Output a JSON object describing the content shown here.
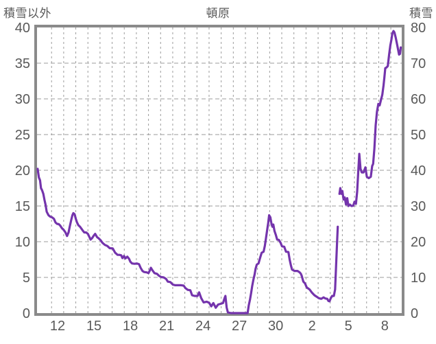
{
  "chart_data": {
    "type": "line",
    "title": "頓原",
    "station": "頓原",
    "left_axis": {
      "title": "積雪以外",
      "min": 0,
      "max": 40,
      "tick_step": 5,
      "ticks": [
        0,
        5,
        10,
        15,
        20,
        25,
        30,
        35,
        40
      ]
    },
    "right_axis": {
      "title": "積雪",
      "min": 0,
      "max": 80,
      "tick_step": 10,
      "ticks": [
        0,
        10,
        20,
        30,
        40,
        50,
        60,
        70,
        80
      ]
    },
    "x_axis": {
      "unit": "day-of-month",
      "domain": [
        10.3,
        40.4
      ],
      "tick_positions": [
        12,
        15,
        18,
        21,
        24,
        27,
        30,
        33,
        36,
        39
      ],
      "tick_labels": [
        "12",
        "15",
        "18",
        "21",
        "24",
        "27",
        "30",
        "2",
        "5",
        "8"
      ],
      "day_gridlines": {
        "start": 11.5,
        "end": 39.5,
        "step": 1
      }
    },
    "grid": {
      "style": "dashed",
      "color": "#9b9b9b",
      "on": true
    },
    "legend": "none",
    "colors": {
      "border": "#8a8a8a",
      "text": "#595959",
      "background": "#ffffff"
    },
    "series": [
      {
        "name": "積雪",
        "axis": "right",
        "unit": "cm",
        "color": "#7434ac",
        "line_width": 3.2,
        "segments": [
          [
            [
              10.35,
              40.4
            ],
            [
              10.45,
              38.0
            ],
            [
              10.55,
              37.2
            ],
            [
              10.63,
              35.0
            ],
            [
              10.72,
              34.4
            ],
            [
              10.82,
              33.4
            ],
            [
              10.92,
              31.6
            ],
            [
              11.0,
              30.4
            ],
            [
              11.1,
              28.4
            ],
            [
              11.25,
              27.4
            ],
            [
              11.4,
              27.0
            ],
            [
              11.55,
              26.8
            ],
            [
              11.7,
              26.4
            ],
            [
              11.82,
              25.4
            ],
            [
              11.95,
              25.0
            ],
            [
              12.1,
              24.9
            ],
            [
              12.22,
              24.5
            ],
            [
              12.35,
              23.8
            ],
            [
              12.5,
              23.3
            ],
            [
              12.65,
              22.6
            ],
            [
              12.78,
              21.6
            ],
            [
              12.9,
              22.6
            ],
            [
              13.0,
              24.2
            ],
            [
              13.12,
              26.0
            ],
            [
              13.22,
              27.4
            ],
            [
              13.3,
              28.0
            ],
            [
              13.4,
              27.7
            ],
            [
              13.5,
              26.4
            ],
            [
              13.6,
              25.4
            ],
            [
              13.72,
              24.6
            ],
            [
              13.85,
              24.2
            ],
            [
              13.98,
              23.6
            ],
            [
              14.1,
              23.0
            ],
            [
              14.2,
              22.6
            ],
            [
              14.35,
              22.6
            ],
            [
              14.5,
              22.2
            ],
            [
              14.62,
              21.3
            ],
            [
              14.72,
              20.6
            ],
            [
              14.85,
              21.0
            ],
            [
              15.0,
              21.8
            ],
            [
              15.1,
              22.2
            ],
            [
              15.25,
              21.3
            ],
            [
              15.4,
              20.9
            ],
            [
              15.55,
              20.4
            ],
            [
              15.7,
              19.7
            ],
            [
              15.9,
              19.1
            ],
            [
              16.1,
              18.8
            ],
            [
              16.3,
              18.2
            ],
            [
              16.55,
              18.1
            ],
            [
              16.75,
              16.9
            ],
            [
              16.95,
              16.3
            ],
            [
              17.1,
              16.3
            ],
            [
              17.25,
              16.2
            ],
            [
              17.35,
              15.4
            ],
            [
              17.48,
              16.0
            ],
            [
              17.6,
              15.3
            ],
            [
              17.75,
              15.8
            ],
            [
              17.9,
              15.2
            ],
            [
              18.0,
              14.4
            ],
            [
              18.15,
              13.9
            ],
            [
              18.35,
              13.8
            ],
            [
              18.55,
              13.9
            ],
            [
              18.72,
              13.7
            ],
            [
              18.85,
              12.7
            ],
            [
              19.0,
              11.8
            ],
            [
              19.15,
              11.5
            ],
            [
              19.35,
              11.4
            ],
            [
              19.5,
              11.2
            ],
            [
              19.62,
              12.0
            ],
            [
              19.7,
              12.7
            ],
            [
              19.82,
              12.0
            ],
            [
              20.0,
              11.2
            ],
            [
              20.2,
              11.0
            ],
            [
              20.38,
              10.4
            ],
            [
              20.55,
              10.1
            ],
            [
              20.75,
              10.0
            ],
            [
              20.95,
              9.6
            ],
            [
              21.1,
              8.8
            ],
            [
              21.3,
              8.7
            ],
            [
              21.5,
              8.0
            ],
            [
              21.7,
              7.8
            ],
            [
              21.95,
              7.8
            ],
            [
              22.2,
              7.8
            ],
            [
              22.4,
              7.7
            ],
            [
              22.55,
              7.0
            ],
            [
              22.75,
              6.5
            ],
            [
              22.95,
              6.4
            ],
            [
              23.1,
              5.0
            ],
            [
              23.3,
              4.8
            ],
            [
              23.55,
              4.8
            ],
            [
              23.68,
              5.8
            ],
            [
              23.85,
              4.2
            ],
            [
              24.05,
              3.0
            ],
            [
              24.3,
              3.2
            ],
            [
              24.5,
              2.9
            ],
            [
              24.68,
              1.9
            ],
            [
              24.85,
              2.8
            ],
            [
              25.05,
              1.5
            ],
            [
              25.25,
              2.4
            ],
            [
              25.45,
              2.6
            ],
            [
              25.65,
              2.8
            ],
            [
              25.78,
              4.2
            ],
            [
              25.85,
              4.8
            ],
            [
              25.95,
              1.6
            ],
            [
              26.05,
              0.2
            ],
            [
              26.3,
              0
            ],
            [
              26.7,
              0
            ],
            [
              27.1,
              0
            ],
            [
              27.68,
              0
            ],
            [
              27.78,
              2.2
            ],
            [
              27.88,
              3.8
            ],
            [
              27.97,
              5.6
            ],
            [
              28.06,
              7.6
            ],
            [
              28.16,
              9.4
            ],
            [
              28.26,
              10.8
            ],
            [
              28.34,
              12.4
            ],
            [
              28.44,
              13.6
            ],
            [
              28.58,
              13.9
            ],
            [
              28.72,
              15.6
            ],
            [
              28.84,
              16.9
            ],
            [
              29.0,
              17.2
            ],
            [
              29.1,
              18.8
            ],
            [
              29.18,
              20.6
            ],
            [
              29.28,
              23.0
            ],
            [
              29.38,
              25.2
            ],
            [
              29.46,
              27.4
            ],
            [
              29.56,
              26.8
            ],
            [
              29.66,
              24.8
            ],
            [
              29.73,
              24.2
            ],
            [
              29.8,
              24.8
            ],
            [
              29.9,
              23.0
            ],
            [
              30.0,
              22.0
            ],
            [
              30.12,
              20.6
            ],
            [
              30.26,
              20.5
            ],
            [
              30.4,
              19.7
            ],
            [
              30.52,
              18.7
            ],
            [
              30.7,
              18.6
            ],
            [
              30.85,
              17.2
            ],
            [
              31.05,
              17.1
            ],
            [
              31.15,
              15.0
            ],
            [
              31.25,
              13.4
            ],
            [
              31.35,
              12.2
            ],
            [
              31.55,
              11.8
            ],
            [
              31.8,
              11.8
            ],
            [
              31.98,
              11.4
            ],
            [
              32.08,
              11.0
            ],
            [
              32.15,
              10.4
            ],
            [
              32.28,
              8.8
            ],
            [
              32.42,
              8.3
            ],
            [
              32.56,
              7.2
            ],
            [
              32.8,
              6.6
            ],
            [
              33.0,
              5.7
            ],
            [
              33.2,
              5.0
            ],
            [
              33.38,
              4.6
            ],
            [
              33.55,
              4.2
            ],
            [
              33.75,
              4.0
            ],
            [
              33.95,
              4.4
            ],
            [
              34.1,
              4.1
            ],
            [
              34.25,
              4.0
            ],
            [
              34.35,
              3.4
            ],
            [
              34.44,
              3.3
            ],
            [
              34.52,
              4.0
            ],
            [
              34.65,
              4.8
            ],
            [
              34.8,
              4.8
            ],
            [
              34.9,
              6.6
            ],
            [
              34.98,
              13.0
            ],
            [
              35.06,
              19.4
            ],
            [
              35.12,
              24.2
            ]
          ],
          [
            [
              35.26,
              33.4
            ],
            [
              35.33,
              35.0
            ],
            [
              35.42,
              33.4
            ],
            [
              35.5,
              34.2
            ],
            [
              35.6,
              31.8
            ],
            [
              35.7,
              32.4
            ],
            [
              35.8,
              30.4
            ],
            [
              35.9,
              32.2
            ],
            [
              36.0,
              30.0
            ],
            [
              36.12,
              30.4
            ],
            [
              36.25,
              30.0
            ],
            [
              36.4,
              30.1
            ],
            [
              36.5,
              31.2
            ],
            [
              36.62,
              30.6
            ],
            [
              36.72,
              34.0
            ],
            [
              36.82,
              40.0
            ],
            [
              36.9,
              44.6
            ],
            [
              37.0,
              40.4
            ],
            [
              37.1,
              39.4
            ],
            [
              37.25,
              39.4
            ],
            [
              37.4,
              40.8
            ],
            [
              37.52,
              38.2
            ],
            [
              37.68,
              37.8
            ],
            [
              37.85,
              38.2
            ],
            [
              37.96,
              41.2
            ],
            [
              38.04,
              41.8
            ],
            [
              38.14,
              46.0
            ],
            [
              38.25,
              52.6
            ],
            [
              38.36,
              56.4
            ],
            [
              38.47,
              58.6
            ],
            [
              38.58,
              58.2
            ],
            [
              38.68,
              59.6
            ],
            [
              38.8,
              61.2
            ],
            [
              38.9,
              63.8
            ],
            [
              38.97,
              66.0
            ],
            [
              39.04,
              68.6
            ],
            [
              39.15,
              68.8
            ],
            [
              39.25,
              69.2
            ],
            [
              39.36,
              72.4
            ],
            [
              39.46,
              75.0
            ],
            [
              39.54,
              76.4
            ],
            [
              39.63,
              78.4
            ],
            [
              39.72,
              79.0
            ],
            [
              39.8,
              78.6
            ],
            [
              39.9,
              77.2
            ],
            [
              40.02,
              75.2
            ],
            [
              40.1,
              73.8
            ],
            [
              40.18,
              72.4
            ],
            [
              40.26,
              72.6
            ],
            [
              40.32,
              74.4
            ]
          ]
        ]
      }
    ]
  }
}
